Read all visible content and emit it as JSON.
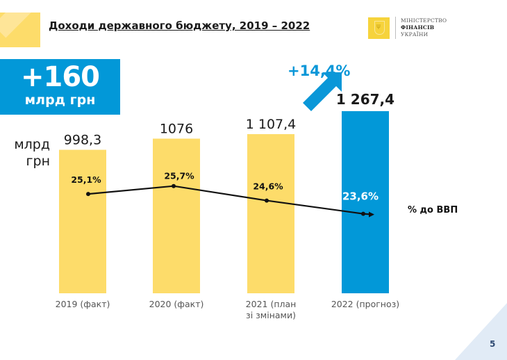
{
  "header": {
    "title": "Доходи державного бюджету, 2019 – 2022",
    "logo": {
      "line1": "МІНІСТЕРСТВО",
      "line2": "ФІНАНСІВ",
      "line3": "УКРАЇНИ",
      "emblem_icon": "tryzub-emblem-icon"
    }
  },
  "badge": {
    "value": "+160",
    "unit": "млрд грн"
  },
  "growth_label": "+14,4%",
  "unit_label_line1": "млрд",
  "unit_label_line2": "грн",
  "page_number": "5",
  "colors": {
    "fact_bar": "#fddc6a",
    "forecast_bar": "#0298d8",
    "accent_blue": "#0a97d8",
    "line": "#111111"
  },
  "chart_data": {
    "type": "bar",
    "title": "Доходи державного бюджету, 2019 – 2022",
    "xlabel": "",
    "ylabel": "млрд грн",
    "ylim": [
      0,
      1267.4
    ],
    "grid": false,
    "categories": [
      [
        "2019 (факт)"
      ],
      [
        "2020 (факт)"
      ],
      [
        "2021 (план",
        "зі змінами)"
      ],
      [
        "2022 (прогноз)"
      ]
    ],
    "series": [
      {
        "name": "Доходи, млрд грн",
        "type": "bar",
        "values": [
          998.3,
          1076,
          1107.4,
          1267.4
        ],
        "labels": [
          "998,3",
          "1076",
          "1 107,4",
          "1 267,4"
        ],
        "colors": [
          "#fddc6a",
          "#fddc6a",
          "#fddc6a",
          "#0298d8"
        ]
      },
      {
        "name": "% до ВВП",
        "type": "line",
        "values": [
          25.1,
          25.7,
          24.6,
          23.6
        ],
        "labels": [
          "25,1%",
          "25,7%",
          "24,6%",
          "23,6%"
        ],
        "ylim": [
          20,
          30
        ]
      }
    ],
    "legend": "% до ВВП",
    "annotations": [
      "+160 млрд грн",
      "+14,4%"
    ]
  }
}
